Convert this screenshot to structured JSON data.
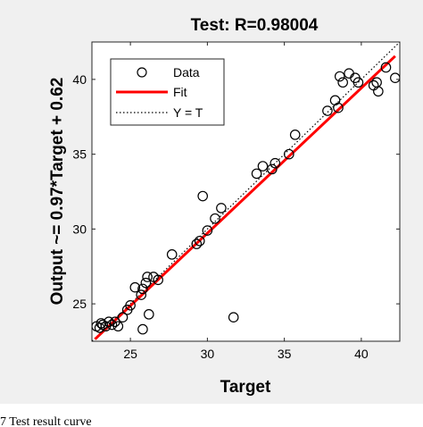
{
  "caption": "7   Test result curve",
  "chart_data": {
    "type": "scatter",
    "title": "Test: R=0.98004",
    "xlabel": "Target",
    "ylabel": "Output ~= 0.97*Target + 0.62",
    "xlim": [
      22.5,
      42.5
    ],
    "ylim": [
      22.5,
      42.5
    ],
    "xticks": [
      25,
      30,
      35,
      40
    ],
    "yticks": [
      25,
      30,
      35,
      40
    ],
    "grid": false,
    "legend_position": "top-left",
    "legend": [
      {
        "label": "Data",
        "style": "circle-marker",
        "color": "#000000"
      },
      {
        "label": "Fit",
        "style": "solid-line",
        "color": "#ff0000"
      },
      {
        "label": "Y = T",
        "style": "dotted-line",
        "color": "#000000"
      }
    ],
    "fit": {
      "slope": 0.97,
      "intercept": 0.62,
      "color": "#ff0000"
    },
    "identity_line": {
      "color": "#000000"
    },
    "series": [
      {
        "name": "Data",
        "points": [
          [
            22.8,
            23.5
          ],
          [
            23.0,
            23.4
          ],
          [
            23.2,
            23.6
          ],
          [
            23.4,
            23.5
          ],
          [
            23.6,
            23.8
          ],
          [
            23.8,
            23.6
          ],
          [
            24.0,
            23.8
          ],
          [
            24.2,
            23.5
          ],
          [
            23.1,
            23.7
          ],
          [
            24.5,
            24.1
          ],
          [
            24.8,
            24.6
          ],
          [
            25.0,
            24.9
          ],
          [
            25.3,
            26.1
          ],
          [
            25.7,
            25.6
          ],
          [
            25.8,
            26.0
          ],
          [
            26.0,
            26.4
          ],
          [
            26.1,
            26.8
          ],
          [
            26.2,
            24.3
          ],
          [
            26.5,
            26.8
          ],
          [
            26.8,
            26.6
          ],
          [
            25.8,
            23.3
          ],
          [
            27.7,
            28.3
          ],
          [
            29.3,
            29.0
          ],
          [
            29.5,
            29.2
          ],
          [
            29.7,
            32.2
          ],
          [
            30.0,
            29.9
          ],
          [
            30.5,
            30.7
          ],
          [
            30.9,
            31.4
          ],
          [
            31.7,
            24.1
          ],
          [
            33.2,
            33.7
          ],
          [
            33.6,
            34.2
          ],
          [
            34.2,
            34.0
          ],
          [
            34.4,
            34.4
          ],
          [
            35.3,
            35.0
          ],
          [
            35.7,
            36.3
          ],
          [
            37.8,
            37.9
          ],
          [
            38.3,
            38.6
          ],
          [
            38.5,
            38.1
          ],
          [
            38.6,
            40.2
          ],
          [
            38.8,
            39.8
          ],
          [
            39.2,
            40.4
          ],
          [
            39.6,
            40.1
          ],
          [
            39.8,
            39.8
          ],
          [
            40.8,
            39.6
          ],
          [
            41.0,
            39.8
          ],
          [
            41.1,
            39.2
          ],
          [
            41.6,
            40.8
          ],
          [
            42.2,
            40.1
          ]
        ]
      }
    ]
  }
}
